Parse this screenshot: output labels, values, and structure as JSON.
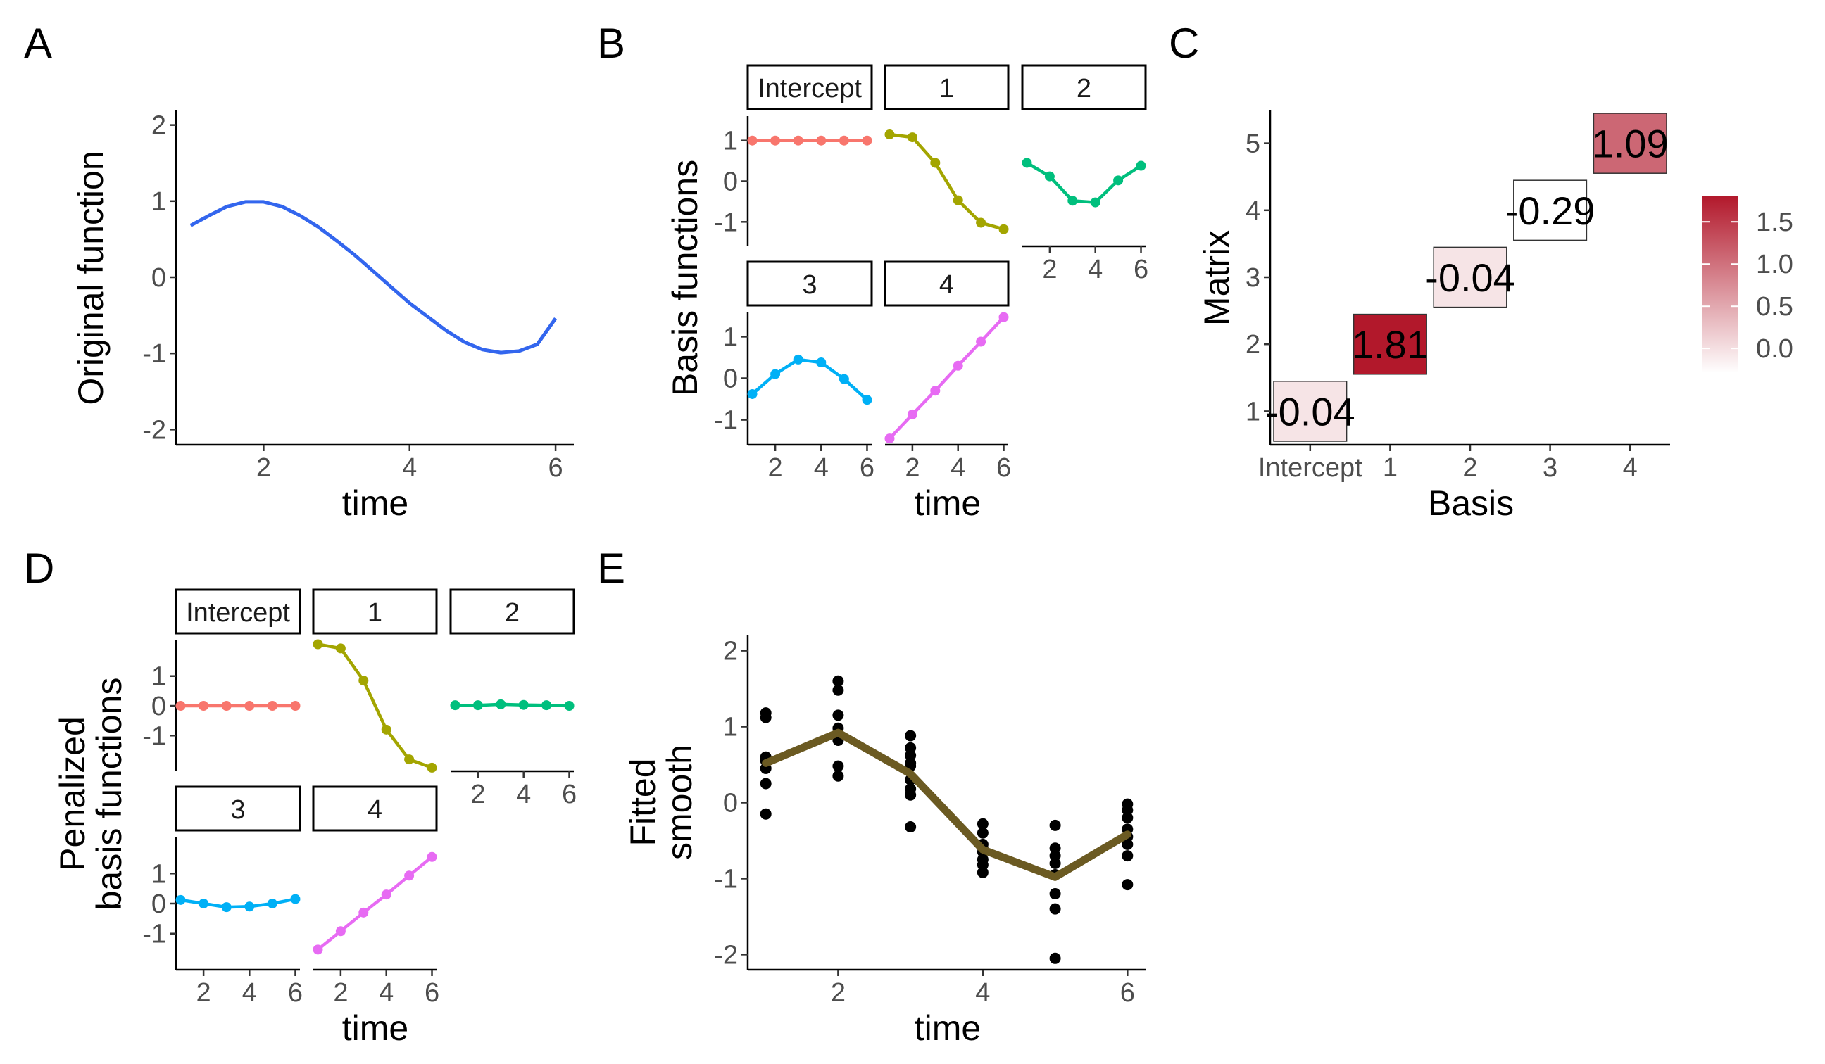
{
  "colors": {
    "original": "#3366ee",
    "intercept": "#f8766d",
    "basis1": "#a3a500",
    "basis2": "#00bf7d",
    "basis3": "#00b0f6",
    "basis4": "#e76bf3",
    "fitted": "#6b5a22",
    "points": "#000000",
    "heat_high": "#b2182b",
    "heat_low": "#ffffff"
  },
  "chart_data": [
    {
      "id": "A",
      "type": "line",
      "panel_label": "A",
      "xlabel": "time",
      "ylabel": "Original function",
      "xlim": [
        0.8,
        6.25
      ],
      "ylim": [
        -2.2,
        2.2
      ],
      "x_ticks": [
        2,
        4,
        6
      ],
      "y_ticks": [
        -2,
        -1,
        0,
        1,
        2
      ],
      "series": [
        {
          "color": "original",
          "x": [
            1.0,
            1.25,
            1.5,
            1.75,
            2.0,
            2.25,
            2.5,
            2.75,
            3.0,
            3.25,
            3.5,
            3.75,
            4.0,
            4.25,
            4.5,
            4.75,
            5.0,
            5.25,
            5.5,
            5.75,
            6.0
          ],
          "y": [
            0.68,
            0.81,
            0.93,
            0.99,
            0.99,
            0.93,
            0.81,
            0.66,
            0.48,
            0.29,
            0.08,
            -0.13,
            -0.34,
            -0.52,
            -0.7,
            -0.85,
            -0.95,
            -0.99,
            -0.97,
            -0.88,
            -0.54
          ]
        }
      ],
      "grid": false
    },
    {
      "id": "B",
      "type": "line",
      "panel_label": "B",
      "xlabel": "time",
      "ylabel": "Basis functions",
      "facets": [
        {
          "label": "Intercept",
          "color": "intercept",
          "x": [
            1,
            2,
            3,
            4,
            5,
            6
          ],
          "y": [
            1,
            1,
            1,
            1,
            1,
            1
          ]
        },
        {
          "label": "1",
          "color": "basis1",
          "x": [
            1,
            2,
            3,
            4,
            5,
            6
          ],
          "y": [
            1.15,
            1.08,
            0.45,
            -0.47,
            -1.02,
            -1.18
          ]
        },
        {
          "label": "2",
          "color": "basis2",
          "x": [
            1,
            2,
            3,
            4,
            5,
            6
          ],
          "y": [
            0.45,
            0.12,
            -0.48,
            -0.52,
            0.02,
            0.38
          ]
        },
        {
          "label": "3",
          "color": "basis3",
          "x": [
            1,
            2,
            3,
            4,
            5,
            6
          ],
          "y": [
            -0.38,
            0.1,
            0.45,
            0.38,
            -0.02,
            -0.52
          ]
        },
        {
          "label": "4",
          "color": "basis4",
          "x": [
            1,
            2,
            3,
            4,
            5,
            6
          ],
          "y": [
            -1.45,
            -0.87,
            -0.3,
            0.3,
            0.88,
            1.47
          ]
        }
      ],
      "xlim": [
        0.8,
        6.2
      ],
      "ylim": [
        -1.6,
        1.6
      ],
      "x_ticks": [
        2,
        4,
        6
      ],
      "y_ticks": [
        -1,
        0,
        1
      ],
      "grid": false
    },
    {
      "id": "C",
      "type": "heatmap",
      "panel_label": "C",
      "xlabel": "Basis",
      "ylabel": "Matrix",
      "x_categories": [
        "Intercept",
        "1",
        "2",
        "3",
        "4"
      ],
      "y_categories": [
        "1",
        "2",
        "3",
        "4",
        "5"
      ],
      "cells": [
        {
          "x": "Intercept",
          "y": "1",
          "value": -0.04,
          "label": "-0.04"
        },
        {
          "x": "1",
          "y": "2",
          "value": 1.81,
          "label": "1.81"
        },
        {
          "x": "2",
          "y": "3",
          "value": -0.04,
          "label": "-0.04"
        },
        {
          "x": "3",
          "y": "4",
          "value": -0.29,
          "label": "-0.29"
        },
        {
          "x": "4",
          "y": "5",
          "value": 1.09,
          "label": "1.09"
        }
      ],
      "legend": {
        "placement": "right",
        "ticks": [
          "1.5",
          "1.0",
          "0.5",
          "0.0"
        ],
        "tick_values": [
          1.5,
          1.0,
          0.5,
          0.0
        ],
        "range": [
          -0.29,
          1.81
        ]
      },
      "grid": false
    },
    {
      "id": "D",
      "type": "line",
      "panel_label": "D",
      "xlabel": "time",
      "ylabel_lines": [
        "Penalized",
        "basis functions"
      ],
      "facets": [
        {
          "label": "Intercept",
          "color": "intercept",
          "x": [
            1,
            2,
            3,
            4,
            5,
            6
          ],
          "y": [
            0,
            0,
            0,
            0,
            0,
            0
          ]
        },
        {
          "label": "1",
          "color": "basis1",
          "x": [
            1,
            2,
            3,
            4,
            5,
            6
          ],
          "y": [
            2.07,
            1.93,
            0.85,
            -0.8,
            -1.8,
            -2.08
          ]
        },
        {
          "label": "2",
          "color": "basis2",
          "x": [
            1,
            2,
            3,
            4,
            5,
            6
          ],
          "y": [
            0.02,
            0.02,
            0.05,
            0.03,
            0.02,
            0.0
          ]
        },
        {
          "label": "3",
          "color": "basis3",
          "x": [
            1,
            2,
            3,
            4,
            5,
            6
          ],
          "y": [
            0.12,
            0.0,
            -0.12,
            -0.1,
            0.0,
            0.15
          ]
        },
        {
          "label": "4",
          "color": "basis4",
          "x": [
            1,
            2,
            3,
            4,
            5,
            6
          ],
          "y": [
            -1.53,
            -0.92,
            -0.3,
            0.3,
            0.93,
            1.55
          ]
        }
      ],
      "xlim": [
        0.8,
        6.2
      ],
      "ylim": [
        -2.2,
        2.2
      ],
      "x_ticks": [
        2,
        4,
        6
      ],
      "y_ticks": [
        -1,
        0,
        1
      ],
      "grid": false
    },
    {
      "id": "E",
      "type": "scatter",
      "panel_label": "E",
      "xlabel": "time",
      "ylabel_lines": [
        "Fitted",
        "smooth"
      ],
      "xlim": [
        0.75,
        6.25
      ],
      "ylim": [
        -2.2,
        2.2
      ],
      "x_ticks": [
        2,
        4,
        6
      ],
      "y_ticks": [
        -2,
        -1,
        0,
        1,
        2
      ],
      "points": {
        "x": [
          1,
          1,
          1,
          1,
          1,
          1,
          1,
          2,
          2,
          2,
          2,
          2,
          2,
          2,
          2,
          2,
          3,
          3,
          3,
          3,
          3,
          3,
          3,
          3,
          3,
          4,
          4,
          4,
          4,
          4,
          4,
          4,
          4,
          5,
          5,
          5,
          5,
          5,
          5,
          5,
          5,
          6,
          6,
          6,
          6,
          6,
          6,
          6,
          6
        ],
        "y": [
          1.18,
          1.12,
          0.55,
          0.45,
          0.25,
          -0.15,
          0.6,
          1.6,
          1.48,
          1.15,
          0.98,
          0.88,
          0.48,
          0.35,
          0.82,
          0.9,
          0.88,
          0.72,
          0.62,
          0.48,
          0.3,
          0.18,
          0.1,
          -0.32,
          0.52,
          -0.28,
          -0.4,
          -0.55,
          -0.65,
          -0.75,
          -0.82,
          -0.92,
          -0.6,
          -0.3,
          -0.6,
          -0.7,
          -0.8,
          -0.95,
          -1.2,
          -1.4,
          -2.05,
          -0.02,
          -0.1,
          -0.2,
          -0.35,
          -0.45,
          -0.55,
          -0.7,
          -1.08
        ]
      },
      "line": {
        "x": [
          1,
          2,
          3,
          4,
          5,
          6
        ],
        "y": [
          0.52,
          0.92,
          0.38,
          -0.62,
          -0.98,
          -0.42
        ]
      },
      "grid": false
    }
  ]
}
